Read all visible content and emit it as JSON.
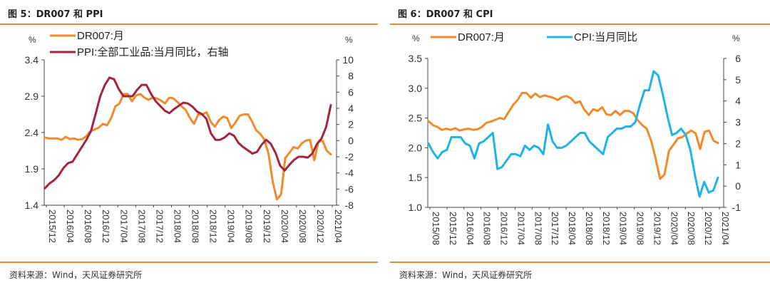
{
  "left_figure": {
    "title": "图 5：DR007 和 PPI",
    "source": "资料来源：Wind，天风证券研究所",
    "y_left_unit": "%",
    "y_right_unit": "%"
  },
  "right_figure": {
    "title": "图 6：DR007 和 CPI",
    "source": "资料来源：Wind，天风证券研究所",
    "y_left_unit": "%",
    "y_right_unit": "%"
  },
  "chart_data": [
    {
      "type": "line",
      "x_tick_labels": [
        "2015/12",
        "2016/04",
        "2016/08",
        "2016/12",
        "2017/04",
        "2017/08",
        "2017/12",
        "2018/04",
        "2018/08",
        "2018/12",
        "2019/04",
        "2019/08",
        "2019/12",
        "2020/04",
        "2020/08",
        "2020/12",
        "2021/04"
      ],
      "y_left": {
        "ylim": [
          1.4,
          3.4
        ],
        "ticks": [
          "1.4",
          "1.9",
          "2.4",
          "2.9",
          "3.4"
        ]
      },
      "y_right": {
        "ylim": [
          -8,
          10
        ],
        "ticks": [
          "-8",
          "-6",
          "-4",
          "-2",
          "0",
          "2",
          "4",
          "6",
          "8",
          "10"
        ]
      },
      "legend": [
        "DR007:月",
        "PPI:全部工业品:当月同比，右轴"
      ],
      "colors": [
        "#f28a2b",
        "#a3243f"
      ],
      "series": [
        {
          "name": "DR007:月",
          "axis": "left",
          "values": [
            2.33,
            2.32,
            2.32,
            2.32,
            2.3,
            2.34,
            2.31,
            2.32,
            2.3,
            2.31,
            2.35,
            2.42,
            2.44,
            2.47,
            2.52,
            2.5,
            2.6,
            2.76,
            2.8,
            2.93,
            2.93,
            2.83,
            2.91,
            2.93,
            2.88,
            2.85,
            2.88,
            2.87,
            2.84,
            2.8,
            2.88,
            2.87,
            2.82,
            2.76,
            2.71,
            2.6,
            2.52,
            2.65,
            2.65,
            2.68,
            2.55,
            2.48,
            2.57,
            2.62,
            2.6,
            2.46,
            2.54,
            2.63,
            2.65,
            2.65,
            2.55,
            2.43,
            2.38,
            2.3,
            2.1,
            1.72,
            1.48,
            1.55,
            2.05,
            2.12,
            2.2,
            2.18,
            2.25,
            2.29,
            2.3,
            2.02,
            2.27,
            2.29,
            2.15,
            2.1
          ]
        },
        {
          "name": "PPI:全部工业品:当月同比，右轴",
          "axis": "right",
          "values": [
            -5.9,
            -5.3,
            -4.9,
            -4.3,
            -3.4,
            -2.8,
            -2.6,
            -1.7,
            -0.8,
            0.1,
            1.2,
            3.3,
            5.5,
            6.9,
            7.8,
            7.6,
            6.4,
            5.5,
            5.5,
            5.5,
            6.3,
            6.9,
            6.9,
            5.8,
            4.9,
            4.3,
            3.7,
            3.4,
            3.9,
            4.3,
            4.7,
            4.6,
            4.2,
            3.6,
            3.3,
            2.7,
            0.9,
            0.1,
            0.1,
            0.4,
            0.9,
            0.6,
            -0.3,
            -0.8,
            -1.2,
            -1.6,
            -1.4,
            -0.5,
            0.1,
            -0.4,
            -1.5,
            -3.1,
            -3.7,
            -3.0,
            -2.4,
            -2.0,
            -2.0,
            -2.1,
            -1.6,
            -0.4,
            0.3,
            1.7,
            4.4
          ]
        }
      ]
    },
    {
      "type": "line",
      "x_tick_labels": [
        "2015/08",
        "2015/12",
        "2016/04",
        "2016/08",
        "2016/12",
        "2017/04",
        "2017/08",
        "2017/12",
        "2018/04",
        "2018/08",
        "2018/12",
        "2019/04",
        "2019/08",
        "2019/12",
        "2020/04",
        "2020/08",
        "2020/12",
        "2021/04"
      ],
      "y_left": {
        "ylim": [
          1.0,
          3.5
        ],
        "ticks": [
          "1.0",
          "1.5",
          "2.0",
          "2.5",
          "3.0",
          "3.5"
        ]
      },
      "y_right": {
        "ylim": [
          -1,
          6
        ],
        "ticks": [
          "-1",
          "0",
          "1",
          "2",
          "3",
          "4",
          "5",
          "6"
        ]
      },
      "legend": [
        "DR007:月",
        "CPI:当月同比"
      ],
      "colors": [
        "#f28a2b",
        "#1fb4e6"
      ],
      "series": [
        {
          "name": "DR007:月",
          "axis": "left",
          "values": [
            2.45,
            2.38,
            2.35,
            2.3,
            2.32,
            2.3,
            2.33,
            2.29,
            2.31,
            2.32,
            2.3,
            2.31,
            2.35,
            2.42,
            2.44,
            2.47,
            2.5,
            2.48,
            2.6,
            2.72,
            2.8,
            2.92,
            2.92,
            2.84,
            2.91,
            2.85,
            2.88,
            2.86,
            2.84,
            2.8,
            2.85,
            2.87,
            2.83,
            2.75,
            2.78,
            2.64,
            2.55,
            2.65,
            2.62,
            2.68,
            2.56,
            2.55,
            2.62,
            2.55,
            2.62,
            2.62,
            2.58,
            2.46,
            2.38,
            2.32,
            2.12,
            1.82,
            1.48,
            1.55,
            1.95,
            2.05,
            2.16,
            2.18,
            2.24,
            2.29,
            2.24,
            1.98,
            2.27,
            2.29,
            2.12,
            2.08
          ]
        },
        {
          "name": "CPI:当月同比",
          "axis": "right",
          "values": [
            2.0,
            1.6,
            1.3,
            1.6,
            1.7,
            2.3,
            2.3,
            2.3,
            2.0,
            1.9,
            1.3,
            2.0,
            2.1,
            2.3,
            2.5,
            0.8,
            0.9,
            1.2,
            1.5,
            1.5,
            1.4,
            1.9,
            1.7,
            1.9,
            1.8,
            1.5,
            2.9,
            2.1,
            1.8,
            1.8,
            1.9,
            2.1,
            2.3,
            2.5,
            2.5,
            2.1,
            1.9,
            1.7,
            1.5,
            2.3,
            2.5,
            2.7,
            2.7,
            2.8,
            2.8,
            3.0,
            3.8,
            4.5,
            4.5,
            5.4,
            5.2,
            4.3,
            3.3,
            2.4,
            2.5,
            2.7,
            2.4,
            1.7,
            0.5,
            -0.5,
            0.2,
            -0.3,
            -0.2,
            0.4
          ]
        }
      ]
    }
  ]
}
